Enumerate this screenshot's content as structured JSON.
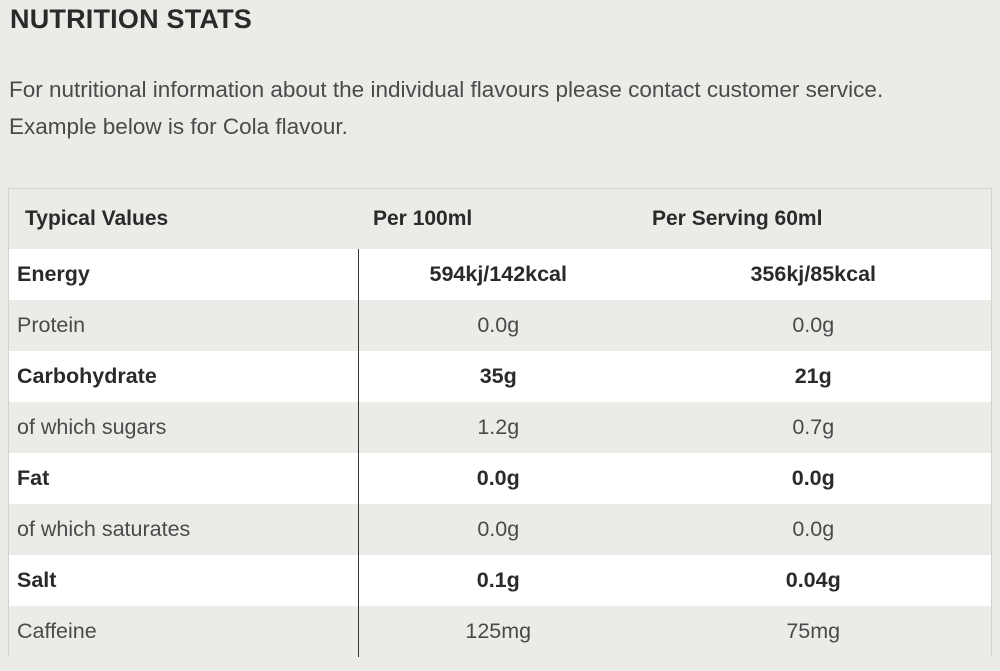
{
  "title": "NUTRITION STATS",
  "intro": {
    "line1": "For nutritional information about the individual flavours please contact customer service.",
    "line2": "Example below is for Cola flavour."
  },
  "table": {
    "headers": [
      "Typical Values",
      "Per 100ml",
      "Per Serving 60ml"
    ],
    "rows": [
      {
        "name": "Energy",
        "per100": "594kj/142kcal",
        "perServing": "356kj/85kcal",
        "bold": true
      },
      {
        "name": "Protein",
        "per100": "0.0g",
        "perServing": "0.0g",
        "bold": false
      },
      {
        "name": "Carbohydrate",
        "per100": "35g",
        "perServing": "21g",
        "bold": true
      },
      {
        "name": "of which sugars",
        "per100": "1.2g",
        "perServing": "0.7g",
        "bold": false
      },
      {
        "name": "Fat",
        "per100": "0.0g",
        "perServing": "0.0g",
        "bold": true
      },
      {
        "name": "of which saturates",
        "per100": "0.0g",
        "perServing": "0.0g",
        "bold": false
      },
      {
        "name": "Salt",
        "per100": "0.1g",
        "perServing": "0.04g",
        "bold": true
      },
      {
        "name": "Caffeine",
        "per100": "125mg",
        "perServing": "75mg",
        "bold": false
      }
    ]
  },
  "colors": {
    "background": "#edebe8",
    "row_alt": "#ffffff",
    "text": "#4a4a4a",
    "heading": "#2a2a2a",
    "divider": "#333333"
  }
}
